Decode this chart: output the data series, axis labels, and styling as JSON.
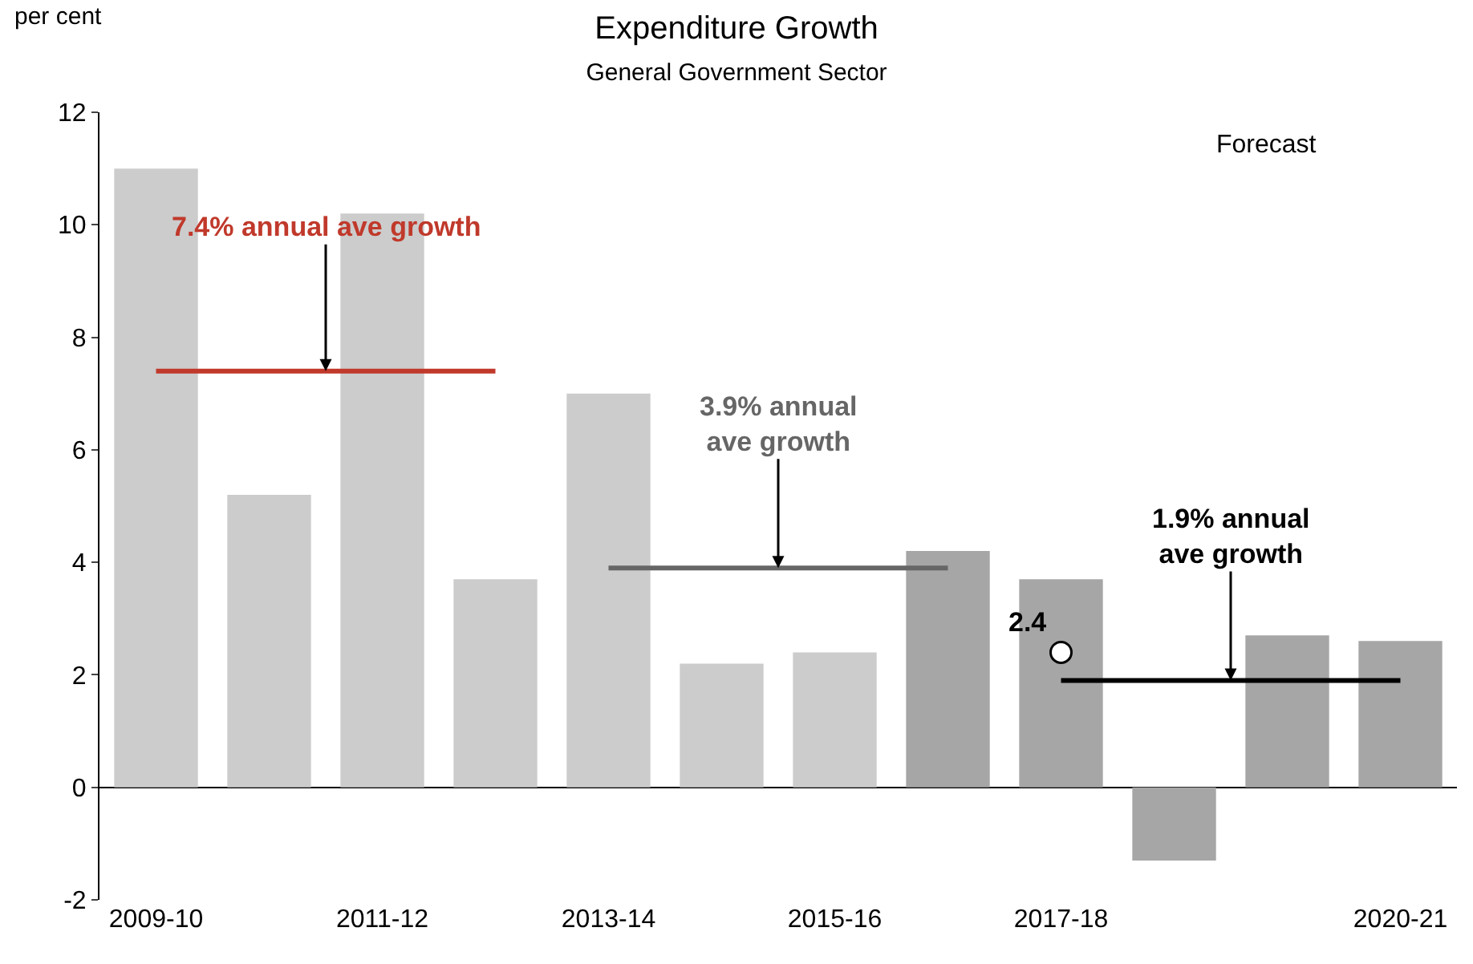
{
  "chart_data": {
    "type": "bar",
    "title": "Expenditure Growth",
    "subtitle": "General Government Sector",
    "ylabel": "per cent",
    "categories": [
      "2009-10",
      null,
      "2011-12",
      null,
      "2013-14",
      null,
      "2015-16",
      null,
      "2017-18",
      null,
      null,
      "2020-21"
    ],
    "series": [
      {
        "colors": [
          "#cccccc",
          "#cccccc",
          "#cccccc",
          "#cccccc",
          "#cccccc",
          "#cccccc",
          "#cccccc",
          "#a6a6a6",
          "#a6a6a6",
          "#a6a6a6",
          "#a6a6a6",
          "#a6a6a6"
        ],
        "values": [
          11.0,
          5.2,
          10.2,
          3.7,
          7.0,
          2.2,
          2.4,
          4.2,
          3.7,
          -1.3,
          2.7,
          2.6
        ]
      },
      {
        "type": "line",
        "name": "7.4% annual ave growth",
        "color": "#c0392b",
        "marker": "none",
        "values": [
          7.4,
          7.4,
          7.4,
          7.4,
          null,
          null,
          null,
          null,
          null,
          null,
          null,
          null
        ]
      },
      {
        "type": "line",
        "name": "3.9% annual\nave growth",
        "color": "#666666",
        "marker": "none",
        "values": [
          null,
          null,
          null,
          null,
          3.9,
          3.9,
          3.9,
          3.9,
          null,
          null,
          null,
          null
        ]
      },
      {
        "type": "line",
        "name": "1.9% annual\nave growth",
        "color": "#000000",
        "marker": "none",
        "values": [
          null,
          null,
          null,
          null,
          null,
          null,
          null,
          null,
          1.9,
          1.9,
          1.9,
          1.9
        ]
      },
      {
        "type": "scatter",
        "color": "#ffffff",
        "marker": "circle",
        "x": [
          "2017-18"
        ],
        "values": [
          2.4
        ],
        "value_labels": [
          "2.4"
        ]
      }
    ],
    "annotations": [
      "Forecast"
    ],
    "ylim": [
      -2,
      12
    ],
    "yticks": [
      -2,
      0,
      2,
      4,
      6,
      8,
      10,
      12
    ],
    "grid": false,
    "legend": false
  }
}
